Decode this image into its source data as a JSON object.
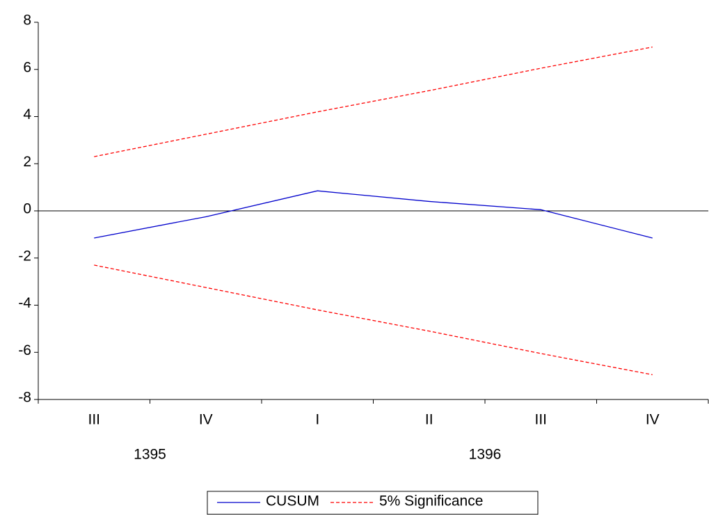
{
  "chart_data": {
    "type": "line",
    "categories": [
      "III",
      "IV",
      "I",
      "II",
      "III",
      "IV"
    ],
    "groups": [
      {
        "label": "1395",
        "start": 0,
        "end": 1
      },
      {
        "label": "1396",
        "start": 2,
        "end": 5
      }
    ],
    "series": [
      {
        "name": "CUSUM",
        "color": "#0000cc",
        "dashed": false,
        "values": [
          -1.15,
          -0.25,
          0.85,
          0.4,
          0.05,
          -1.15
        ]
      },
      {
        "name": "5% Significance",
        "color": "#ff0000",
        "dashed": true,
        "values": [
          2.3,
          3.25,
          4.2,
          5.1,
          6.05,
          6.95
        ],
        "lower_values": [
          -2.3,
          -3.25,
          -4.2,
          -5.1,
          -6.05,
          -6.95
        ]
      }
    ],
    "ylim": [
      -8,
      8
    ],
    "yticks": [
      -8,
      -6,
      -4,
      -2,
      0,
      2,
      4,
      6,
      8
    ],
    "zero_line": true,
    "legend": "bottom"
  }
}
